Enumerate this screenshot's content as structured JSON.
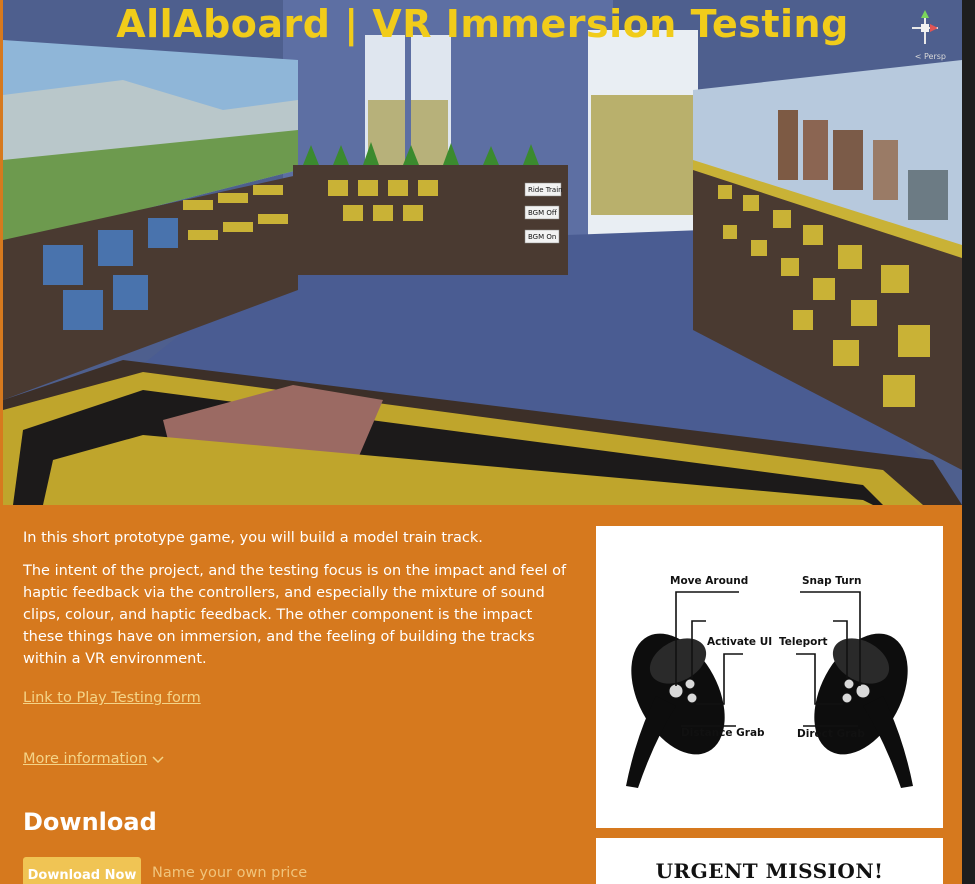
{
  "hero": {
    "title": "AllAboard | VR Immersion Testing",
    "view_label": "< Persp",
    "panel_buttons": [
      "Ride Train",
      "BGM Off",
      "BGM On"
    ]
  },
  "description": {
    "intro": "In this short prototype game, you will build a model train track.",
    "body": "The intent of the project, and the testing focus is on the impact and feel of haptic feedback via the controllers, and especially the mixture of sound clips, colour, and haptic feedback. The other component is the impact these things have on immersion, and the feeling of building the tracks within a VR environment."
  },
  "links": {
    "play_testing": "Link to Play Testing form",
    "more_info": "More information"
  },
  "download": {
    "heading": "Download",
    "button": "Download Now",
    "price_placeholder": "Name your own price"
  },
  "controls": {
    "move_around": "Move Around",
    "snap_turn": "Snap Turn",
    "activate_ui": "Activate UI",
    "teleport": "Teleport",
    "distance_grab": "Distance Grab",
    "direct_grab": "Direct Grab"
  },
  "mission": {
    "title": "URGENT MISSION!"
  },
  "colors": {
    "page_bg": "#d6791e",
    "title_yellow": "#f1cc1a",
    "link": "#f4d488",
    "button": "#f0c454"
  }
}
